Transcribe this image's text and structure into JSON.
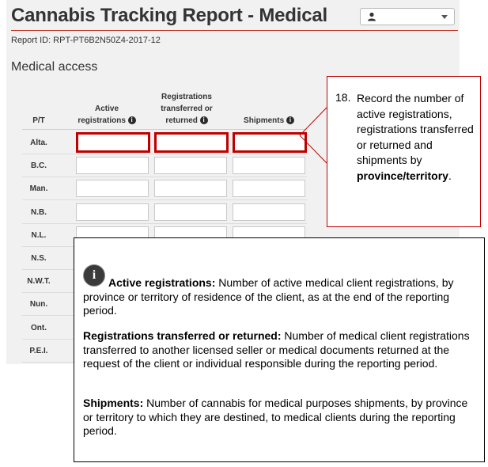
{
  "header": {
    "title": "Cannabis Tracking Report - Medical",
    "report_id": "Report ID: RPT-PT6B2N50Z4-2017-12"
  },
  "user_menu": {
    "icon": "user-icon"
  },
  "section": {
    "title": "Medical access"
  },
  "table": {
    "headers": {
      "pt": "P/T",
      "active_line1": "Active",
      "active_line2": "registrations",
      "transferred_line1": "Registrations",
      "transferred_line2": "transferred or",
      "transferred_line3": "returned",
      "shipments": "Shipments"
    },
    "info_glyph": "i",
    "rows": [
      "Alta.",
      "B.C.",
      "Man.",
      "N.B.",
      "N.L.",
      "N.S.",
      "N.W.T.",
      "Nun.",
      "Ont.",
      "P.E.I."
    ]
  },
  "callout": {
    "number": "18.",
    "text_prefix": "Record the number of active registrations, registrations transferred or returned and shipments by ",
    "text_bold": "province/territory",
    "text_suffix": ".",
    "border_color": "#c00000"
  },
  "definitions": {
    "icon_glyph": "i",
    "active_term": "Active registrations:",
    "active_def": " Number of active medical client registrations, by province or territory of residence of the client, as at the end of the reporting period.",
    "transferred_term": "Registrations transferred or returned:",
    "transferred_def": " Number of medical client registrations transferred to another licensed seller or medical documents returned at the request of the client or individual responsible during the reporting period.",
    "shipments_term": "Shipments:",
    "shipments_def": " Number of cannabis for medical purposes shipments, by province or territory to which they are destined, to medical clients during the reporting period."
  }
}
